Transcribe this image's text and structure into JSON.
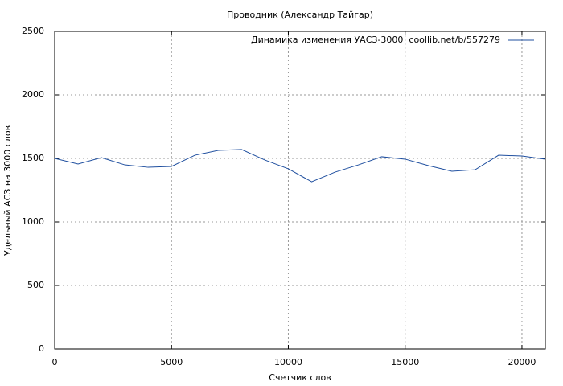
{
  "chart_data": {
    "type": "line",
    "title": "Проводник (Александр Тайгар)",
    "x_label": "Счетчик слов",
    "y_label": "Удельный АСЗ на 3000 слов",
    "x": [
      0,
      1000,
      2000,
      3000,
      4000,
      5000,
      6000,
      7000,
      8000,
      9000,
      10000,
      11000,
      12000,
      13000,
      14000,
      15000,
      16000,
      17000,
      18000,
      19000,
      20000,
      21000
    ],
    "series": [
      {
        "name": "Динамика изменения УАСЗ-3000  coollib.net/b/557279",
        "color": "#1f4f9f",
        "values": [
          1500,
          1456,
          1506,
          1449,
          1430,
          1437,
          1525,
          1563,
          1570,
          1487,
          1418,
          1316,
          1392,
          1449,
          1513,
          1494,
          1443,
          1399,
          1411,
          1525,
          1519,
          1494
        ]
      }
    ],
    "xlim": [
      0,
      21000
    ],
    "xticks": [
      0,
      5000,
      10000,
      15000,
      20000
    ],
    "ylim": [
      0,
      2500
    ],
    "yticks": [
      0,
      500,
      1000,
      1500,
      2000,
      2500
    ],
    "grid": true,
    "legend": "top-right"
  }
}
